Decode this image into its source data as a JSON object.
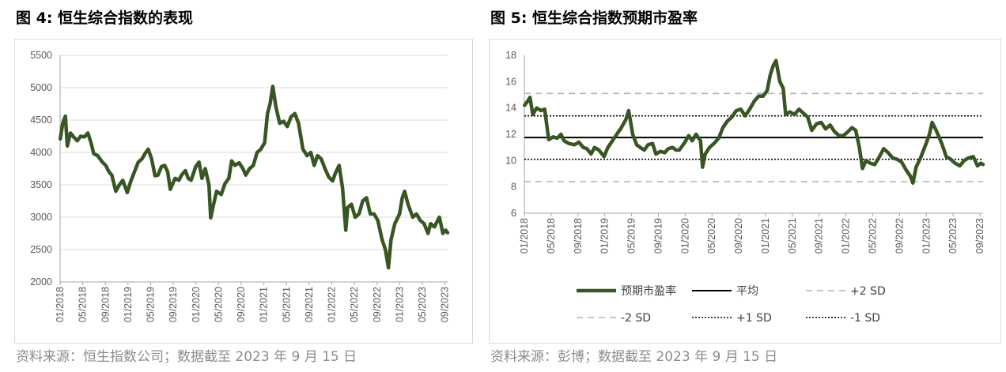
{
  "left": {
    "title": "图 4:  恒生综合指数的表现",
    "source": "资料来源：恒生指数公司；数据截至 2023 年 9 月 15 日",
    "series_color": "#375623",
    "chart_data": {
      "type": "line",
      "title": "",
      "xlabel": "",
      "ylabel": "",
      "ylim": [
        2000,
        5500
      ],
      "yticks": [
        "5500",
        "5000",
        "4500",
        "4000",
        "3500",
        "3000",
        "2500",
        "2000"
      ],
      "xticks": [
        "01/2018",
        "05/2018",
        "09/2018",
        "01/2019",
        "05/2019",
        "09/2019",
        "01/2020",
        "05/2020",
        "09/2020",
        "01/2021",
        "05/2021",
        "09/2021",
        "01/2022",
        "05/2022",
        "09/2022",
        "01/2023",
        "05/2023",
        "09/2023"
      ],
      "grid": true,
      "legend": "none",
      "series": [
        {
          "values": [
            [
              "2018-01-02",
              4210
            ],
            [
              "2018-01-15",
              4450
            ],
            [
              "2018-01-29",
              4560
            ],
            [
              "2018-02-09",
              4100
            ],
            [
              "2018-02-26",
              4300
            ],
            [
              "2018-03-15",
              4230
            ],
            [
              "2018-04-02",
              4180
            ],
            [
              "2018-04-20",
              4250
            ],
            [
              "2018-05-10",
              4240
            ],
            [
              "2018-05-28",
              4300
            ],
            [
              "2018-06-15",
              4150
            ],
            [
              "2018-06-29",
              3980
            ],
            [
              "2018-07-20",
              3950
            ],
            [
              "2018-08-15",
              3850
            ],
            [
              "2018-09-03",
              3800
            ],
            [
              "2018-09-20",
              3700
            ],
            [
              "2018-10-05",
              3650
            ],
            [
              "2018-10-26",
              3400
            ],
            [
              "2018-11-15",
              3500
            ],
            [
              "2018-12-03",
              3570
            ],
            [
              "2018-12-27",
              3380
            ],
            [
              "2019-01-15",
              3550
            ],
            [
              "2019-02-05",
              3700
            ],
            [
              "2019-02-25",
              3850
            ],
            [
              "2019-03-15",
              3900
            ],
            [
              "2019-04-03",
              3990
            ],
            [
              "2019-04-18",
              4050
            ],
            [
              "2019-05-06",
              3900
            ],
            [
              "2019-05-24",
              3640
            ],
            [
              "2019-06-10",
              3650
            ],
            [
              "2019-06-28",
              3780
            ],
            [
              "2019-07-15",
              3800
            ],
            [
              "2019-08-01",
              3700
            ],
            [
              "2019-08-15",
              3430
            ],
            [
              "2019-09-10",
              3600
            ],
            [
              "2019-09-30",
              3570
            ],
            [
              "2019-10-15",
              3650
            ],
            [
              "2019-11-05",
              3720
            ],
            [
              "2019-11-20",
              3600
            ],
            [
              "2019-12-05",
              3570
            ],
            [
              "2019-12-30",
              3780
            ],
            [
              "2020-01-17",
              3850
            ],
            [
              "2020-02-03",
              3600
            ],
            [
              "2020-02-20",
              3750
            ],
            [
              "2020-03-10",
              3500
            ],
            [
              "2020-03-19",
              2990
            ],
            [
              "2020-04-01",
              3150
            ],
            [
              "2020-04-20",
              3400
            ],
            [
              "2020-05-15",
              3350
            ],
            [
              "2020-06-05",
              3520
            ],
            [
              "2020-06-25",
              3600
            ],
            [
              "2020-07-10",
              3870
            ],
            [
              "2020-07-28",
              3800
            ],
            [
              "2020-08-20",
              3840
            ],
            [
              "2020-09-10",
              3750
            ],
            [
              "2020-09-25",
              3650
            ],
            [
              "2020-10-15",
              3750
            ],
            [
              "2020-11-05",
              3800
            ],
            [
              "2020-11-25",
              4000
            ],
            [
              "2020-12-15",
              4050
            ],
            [
              "2021-01-05",
              4150
            ],
            [
              "2021-01-20",
              4600
            ],
            [
              "2021-02-04",
              4750
            ],
            [
              "2021-02-18",
              5020
            ],
            [
              "2021-03-05",
              4700
            ],
            [
              "2021-03-25",
              4450
            ],
            [
              "2021-04-15",
              4480
            ],
            [
              "2021-05-05",
              4400
            ],
            [
              "2021-05-25",
              4550
            ],
            [
              "2021-06-15",
              4600
            ],
            [
              "2021-07-05",
              4450
            ],
            [
              "2021-07-28",
              4050
            ],
            [
              "2021-08-20",
              3950
            ],
            [
              "2021-09-10",
              4000
            ],
            [
              "2021-09-28",
              3800
            ],
            [
              "2021-10-15",
              3950
            ],
            [
              "2021-11-05",
              3900
            ],
            [
              "2021-11-25",
              3750
            ],
            [
              "2021-12-15",
              3620
            ],
            [
              "2022-01-05",
              3560
            ],
            [
              "2022-01-20",
              3680
            ],
            [
              "2022-02-10",
              3800
            ],
            [
              "2022-02-28",
              3450
            ],
            [
              "2022-03-15",
              2800
            ],
            [
              "2022-03-25",
              3150
            ],
            [
              "2022-04-15",
              3200
            ],
            [
              "2022-05-05",
              3000
            ],
            [
              "2022-05-25",
              3050
            ],
            [
              "2022-06-15",
              3250
            ],
            [
              "2022-07-05",
              3300
            ],
            [
              "2022-07-25",
              3050
            ],
            [
              "2022-08-15",
              3050
            ],
            [
              "2022-09-05",
              2950
            ],
            [
              "2022-09-28",
              2650
            ],
            [
              "2022-10-15",
              2500
            ],
            [
              "2022-10-31",
              2220
            ],
            [
              "2022-11-15",
              2650
            ],
            [
              "2022-12-05",
              2900
            ],
            [
              "2022-12-30",
              3050
            ],
            [
              "2023-01-15",
              3300
            ],
            [
              "2023-01-27",
              3400
            ],
            [
              "2023-02-15",
              3200
            ],
            [
              "2023-03-10",
              3000
            ],
            [
              "2023-03-30",
              3050
            ],
            [
              "2023-04-20",
              2950
            ],
            [
              "2023-05-10",
              2900
            ],
            [
              "2023-05-31",
              2750
            ],
            [
              "2023-06-15",
              2900
            ],
            [
              "2023-07-05",
              2850
            ],
            [
              "2023-07-31",
              3000
            ],
            [
              "2023-08-20",
              2750
            ],
            [
              "2023-09-05",
              2800
            ],
            [
              "2023-09-15",
              2760
            ]
          ]
        }
      ]
    }
  },
  "right": {
    "title": "图 5:  恒生综合指数预期市盈率",
    "source": "资料来源：彭博；数据截至 2023 年 9 月 15 日",
    "colors": {
      "series": "#375623",
      "avg": "#000000",
      "sd2": "#b3b3b3",
      "sd1": "#000000"
    },
    "chart_data": {
      "type": "line",
      "title": "",
      "xlabel": "",
      "ylabel": "",
      "ylim": [
        6,
        18
      ],
      "yticks": [
        "18",
        "16",
        "14",
        "12",
        "10",
        "8",
        "6"
      ],
      "xticks": [
        "01/2018",
        "05/2018",
        "09/2018",
        "01/2019",
        "05/2019",
        "09/2019",
        "01/2020",
        "05/2020",
        "09/2020",
        "01/2021",
        "05/2021",
        "09/2021",
        "01/2022",
        "05/2022",
        "09/2022",
        "01/2023",
        "05/2023",
        "09/2023"
      ],
      "grid": false,
      "legend": "bottom",
      "reference_lines": [
        {
          "name": "平均",
          "value": 11.75,
          "style": "solid"
        },
        {
          "name": "+2 SD",
          "value": 15.1,
          "style": "dashed"
        },
        {
          "name": "-2 SD",
          "value": 8.4,
          "style": "dashed"
        },
        {
          "name": "+1 SD",
          "value": 13.4,
          "style": "dotted"
        },
        {
          "name": "-1 SD",
          "value": 10.1,
          "style": "dotted"
        }
      ],
      "series": [
        {
          "name": "预期市盈率",
          "values": [
            [
              "2018-01-02",
              14.2
            ],
            [
              "2018-01-15",
              14.5
            ],
            [
              "2018-01-26",
              14.8
            ],
            [
              "2018-02-09",
              13.5
            ],
            [
              "2018-02-26",
              14.0
            ],
            [
              "2018-03-15",
              13.8
            ],
            [
              "2018-04-02",
              13.9
            ],
            [
              "2018-04-20",
              11.6
            ],
            [
              "2018-05-10",
              11.8
            ],
            [
              "2018-05-28",
              11.7
            ],
            [
              "2018-06-15",
              12.0
            ],
            [
              "2018-06-29",
              11.5
            ],
            [
              "2018-07-20",
              11.3
            ],
            [
              "2018-08-15",
              11.2
            ],
            [
              "2018-09-05",
              11.4
            ],
            [
              "2018-09-25",
              11.0
            ],
            [
              "2018-10-11",
              10.9
            ],
            [
              "2018-10-30",
              10.5
            ],
            [
              "2018-11-15",
              11.0
            ],
            [
              "2018-12-05",
              10.8
            ],
            [
              "2018-12-28",
              10.3
            ],
            [
              "2019-01-15",
              11.0
            ],
            [
              "2019-02-05",
              11.5
            ],
            [
              "2019-02-25",
              12.0
            ],
            [
              "2019-03-15",
              12.5
            ],
            [
              "2019-04-05",
              13.1
            ],
            [
              "2019-04-18",
              13.8
            ],
            [
              "2019-05-06",
              12.0
            ],
            [
              "2019-05-24",
              11.2
            ],
            [
              "2019-06-10",
              11.0
            ],
            [
              "2019-06-28",
              10.8
            ],
            [
              "2019-07-15",
              11.2
            ],
            [
              "2019-08-05",
              11.3
            ],
            [
              "2019-08-20",
              10.5
            ],
            [
              "2019-09-10",
              10.7
            ],
            [
              "2019-09-30",
              10.6
            ],
            [
              "2019-10-15",
              10.9
            ],
            [
              "2019-11-05",
              11.0
            ],
            [
              "2019-11-20",
              10.8
            ],
            [
              "2019-12-05",
              10.8
            ],
            [
              "2019-12-30",
              11.4
            ],
            [
              "2020-01-17",
              11.9
            ],
            [
              "2020-02-03",
              11.5
            ],
            [
              "2020-02-20",
              12.0
            ],
            [
              "2020-03-10",
              11.5
            ],
            [
              "2020-03-19",
              9.5
            ],
            [
              "2020-04-01",
              10.5
            ],
            [
              "2020-04-20",
              11.0
            ],
            [
              "2020-05-10",
              11.3
            ],
            [
              "2020-05-31",
              11.7
            ],
            [
              "2020-06-20",
              12.5
            ],
            [
              "2020-07-10",
              13.0
            ],
            [
              "2020-07-30",
              13.3
            ],
            [
              "2020-08-20",
              13.8
            ],
            [
              "2020-09-10",
              13.9
            ],
            [
              "2020-09-30",
              13.4
            ],
            [
              "2020-10-20",
              13.9
            ],
            [
              "2020-11-10",
              14.5
            ],
            [
              "2020-11-30",
              14.9
            ],
            [
              "2020-12-20",
              14.9
            ],
            [
              "2021-01-08",
              15.3
            ],
            [
              "2021-01-22",
              16.5
            ],
            [
              "2021-02-05",
              17.2
            ],
            [
              "2021-02-18",
              17.6
            ],
            [
              "2021-03-05",
              16.0
            ],
            [
              "2021-03-20",
              15.5
            ],
            [
              "2021-03-31",
              13.5
            ],
            [
              "2021-04-20",
              13.7
            ],
            [
              "2021-05-10",
              13.5
            ],
            [
              "2021-05-31",
              13.9
            ],
            [
              "2021-06-20",
              13.6
            ],
            [
              "2021-07-10",
              13.3
            ],
            [
              "2021-07-28",
              12.3
            ],
            [
              "2021-08-20",
              12.8
            ],
            [
              "2021-09-10",
              12.9
            ],
            [
              "2021-09-30",
              12.4
            ],
            [
              "2021-10-20",
              12.7
            ],
            [
              "2021-11-10",
              12.2
            ],
            [
              "2021-11-30",
              11.9
            ],
            [
              "2021-12-20",
              11.9
            ],
            [
              "2022-01-10",
              12.2
            ],
            [
              "2022-01-28",
              12.5
            ],
            [
              "2022-02-15",
              12.3
            ],
            [
              "2022-03-01",
              11.0
            ],
            [
              "2022-03-15",
              9.4
            ],
            [
              "2022-04-01",
              10.0
            ],
            [
              "2022-04-20",
              9.8
            ],
            [
              "2022-05-10",
              9.7
            ],
            [
              "2022-05-31",
              10.3
            ],
            [
              "2022-06-20",
              10.9
            ],
            [
              "2022-07-10",
              10.6
            ],
            [
              "2022-07-30",
              10.2
            ],
            [
              "2022-08-20",
              10.1
            ],
            [
              "2022-09-10",
              9.9
            ],
            [
              "2022-09-30",
              9.3
            ],
            [
              "2022-10-20",
              8.8
            ],
            [
              "2022-10-31",
              8.3
            ],
            [
              "2022-11-15",
              9.5
            ],
            [
              "2022-12-05",
              10.2
            ],
            [
              "2022-12-30",
              11.3
            ],
            [
              "2023-01-15",
              12.0
            ],
            [
              "2023-01-27",
              12.9
            ],
            [
              "2023-02-15",
              12.3
            ],
            [
              "2023-03-10",
              11.3
            ],
            [
              "2023-03-30",
              10.3
            ],
            [
              "2023-04-20",
              10.1
            ],
            [
              "2023-05-10",
              9.8
            ],
            [
              "2023-05-31",
              9.6
            ],
            [
              "2023-06-20",
              10.0
            ],
            [
              "2023-07-10",
              10.2
            ],
            [
              "2023-07-31",
              10.3
            ],
            [
              "2023-08-20",
              9.6
            ],
            [
              "2023-09-05",
              9.8
            ],
            [
              "2023-09-15",
              9.7
            ]
          ]
        }
      ]
    }
  }
}
